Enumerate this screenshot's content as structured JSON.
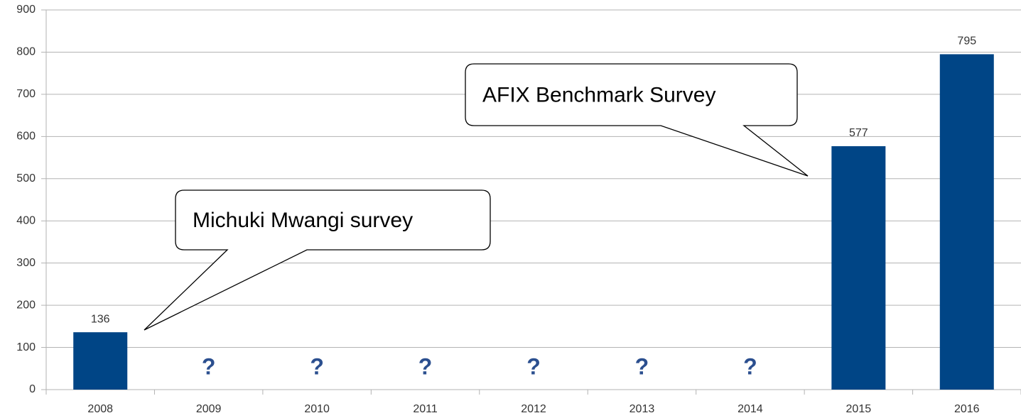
{
  "chart_data": {
    "type": "bar",
    "categories": [
      "2008",
      "2009",
      "2010",
      "2011",
      "2012",
      "2013",
      "2014",
      "2015",
      "2016"
    ],
    "values": [
      136,
      null,
      null,
      null,
      null,
      null,
      null,
      577,
      795
    ],
    "value_labels": [
      "136",
      "?",
      "?",
      "?",
      "?",
      "?",
      "?",
      "577",
      "795"
    ],
    "color": "#004586",
    "ylim": [
      0,
      900
    ],
    "yticks": [
      0,
      100,
      200,
      300,
      400,
      500,
      600,
      700,
      800,
      900
    ],
    "grid": true,
    "annotations": [
      {
        "text": "Michuki Mwangi survey"
      },
      {
        "text": "AFIX Benchmark Survey"
      }
    ]
  }
}
